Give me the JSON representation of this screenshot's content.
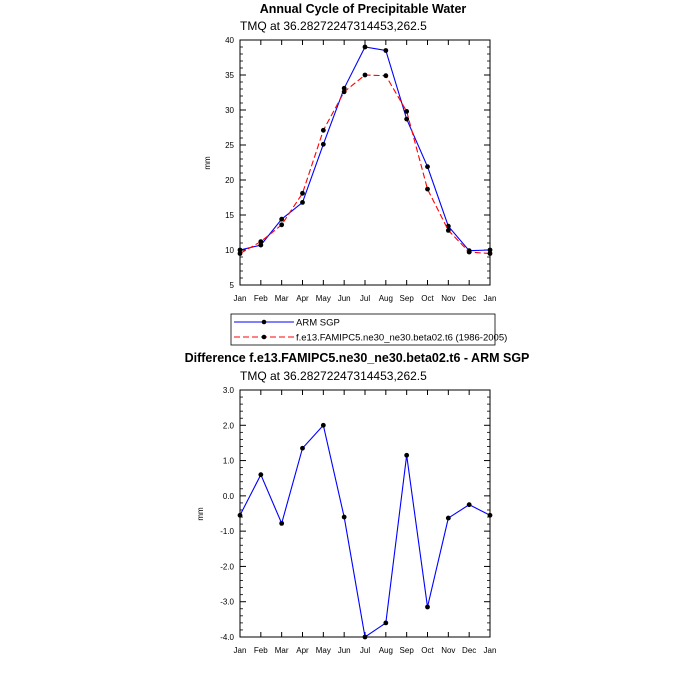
{
  "chart_data": [
    {
      "type": "line",
      "title": "Annual Cycle of Precipitable Water",
      "subtitle": "TMQ at 36.28272247314453,262.5",
      "ylabel": "mm",
      "categories": [
        "Jan",
        "Feb",
        "Mar",
        "Apr",
        "May",
        "Jun",
        "Jul",
        "Aug",
        "Sep",
        "Oct",
        "Nov",
        "Dec",
        "Jan"
      ],
      "ylim": [
        5,
        40
      ],
      "yticks": [
        "5",
        "10",
        "15",
        "20",
        "25",
        "30",
        "35",
        "40"
      ],
      "series": [
        {
          "name": "ARM SGP",
          "color": "#0000ff",
          "dashed": false,
          "values": [
            10.0,
            10.7,
            14.4,
            16.8,
            25.1,
            33.1,
            39.0,
            38.5,
            28.7,
            21.9,
            13.4,
            9.9,
            10.0
          ]
        },
        {
          "name": "f.e13.FAMIPC5.ne30_ne30.beta02.t6 (1986-2005)",
          "color": "#ff0000",
          "dashed": true,
          "values": [
            9.5,
            11.2,
            13.6,
            18.1,
            27.1,
            32.6,
            35.0,
            34.9,
            29.8,
            18.7,
            12.8,
            9.7,
            9.5
          ]
        }
      ],
      "legend": "bottom"
    },
    {
      "type": "line",
      "title": "Difference f.e13.FAMIPC5.ne30_ne30.beta02.t6 - ARM SGP",
      "subtitle": "TMQ at 36.28272247314453,262.5",
      "ylabel": "mm",
      "categories": [
        "Jan",
        "Feb",
        "Mar",
        "Apr",
        "May",
        "Jun",
        "Jul",
        "Aug",
        "Sep",
        "Oct",
        "Nov",
        "Dec",
        "Jan"
      ],
      "ylim": [
        -4.0,
        3.0
      ],
      "yticks": [
        "-4.0",
        "-3.0",
        "-2.0",
        "-1.0",
        "0.0",
        "1.0",
        "2.0",
        "3.0"
      ],
      "series": [
        {
          "name": "",
          "color": "#0000ff",
          "dashed": false,
          "values": [
            -0.55,
            0.6,
            -0.78,
            1.35,
            2.0,
            -0.6,
            -4.0,
            -3.6,
            1.15,
            -3.15,
            -0.63,
            -0.25,
            -0.55
          ]
        }
      ]
    }
  ]
}
